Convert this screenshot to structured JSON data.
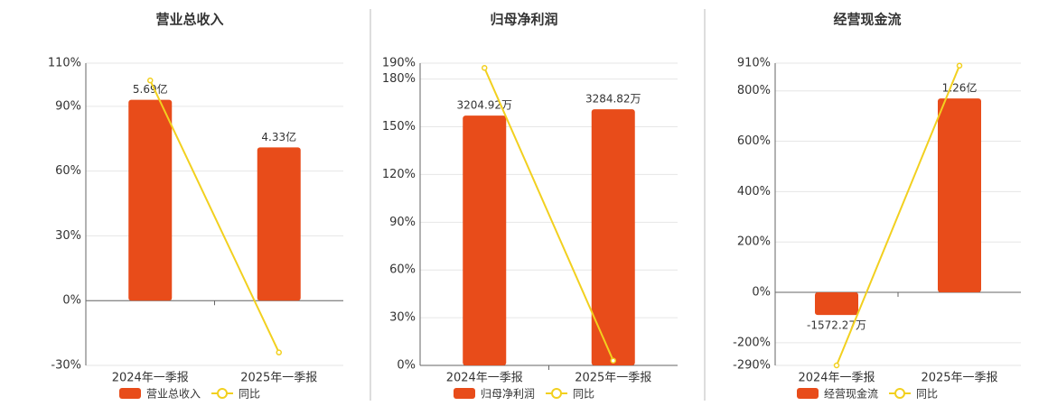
{
  "chart_data": [
    {
      "type": "bar",
      "title": "营业总收入",
      "categories": [
        "2024年一季报",
        "2025年一季报"
      ],
      "series": [
        {
          "name": "营业总收入",
          "type": "bar",
          "color": "#e84c1a",
          "values": [
            93,
            71
          ],
          "value_labels": [
            "5.69亿",
            "4.33亿"
          ]
        },
        {
          "name": "同比",
          "type": "line",
          "color": "#f2d01f",
          "values": [
            102,
            -24
          ]
        }
      ],
      "ylim": [
        -30,
        110
      ],
      "yticks": [
        {
          "value": -30,
          "label": "-30%"
        },
        {
          "value": 0,
          "label": "0%"
        },
        {
          "value": 30,
          "label": "30%"
        },
        {
          "value": 60,
          "label": "60%"
        },
        {
          "value": 90,
          "label": "90%"
        },
        {
          "value": 110,
          "label": "110%"
        }
      ],
      "grid": true
    },
    {
      "type": "bar",
      "title": "归母净利润",
      "categories": [
        "2024年一季报",
        "2025年一季报"
      ],
      "series": [
        {
          "name": "归母净利润",
          "type": "bar",
          "color": "#e84c1a",
          "values": [
            157,
            161
          ],
          "value_labels": [
            "3204.92万",
            "3284.82万"
          ]
        },
        {
          "name": "同比",
          "type": "line",
          "color": "#f2d01f",
          "values": [
            187,
            3
          ]
        }
      ],
      "ylim": [
        0,
        190
      ],
      "yticks": [
        {
          "value": 0,
          "label": "0%"
        },
        {
          "value": 30,
          "label": "30%"
        },
        {
          "value": 60,
          "label": "60%"
        },
        {
          "value": 90,
          "label": "90%"
        },
        {
          "value": 120,
          "label": "120%"
        },
        {
          "value": 150,
          "label": "150%"
        },
        {
          "value": 180,
          "label": "180%"
        },
        {
          "value": 190,
          "label": "190%"
        }
      ],
      "grid": true
    },
    {
      "type": "bar",
      "title": "经营现金流",
      "categories": [
        "2024年一季报",
        "2025年一季报"
      ],
      "series": [
        {
          "name": "经营现金流",
          "type": "bar",
          "color": "#e84c1a",
          "values": [
            -90,
            770
          ],
          "value_labels": [
            "-1572.27万",
            "1.26亿"
          ]
        },
        {
          "name": "同比",
          "type": "line",
          "color": "#f2d01f",
          "values": [
            -290,
            900
          ]
        }
      ],
      "ylim": [
        -290,
        910
      ],
      "yticks": [
        {
          "value": -290,
          "label": "-290%"
        },
        {
          "value": -200,
          "label": "-200%"
        },
        {
          "value": 0,
          "label": "0%"
        },
        {
          "value": 200,
          "label": "200%"
        },
        {
          "value": 400,
          "label": "400%"
        },
        {
          "value": 600,
          "label": "600%"
        },
        {
          "value": 800,
          "label": "800%"
        },
        {
          "value": 910,
          "label": "910%"
        }
      ],
      "grid": true
    }
  ]
}
